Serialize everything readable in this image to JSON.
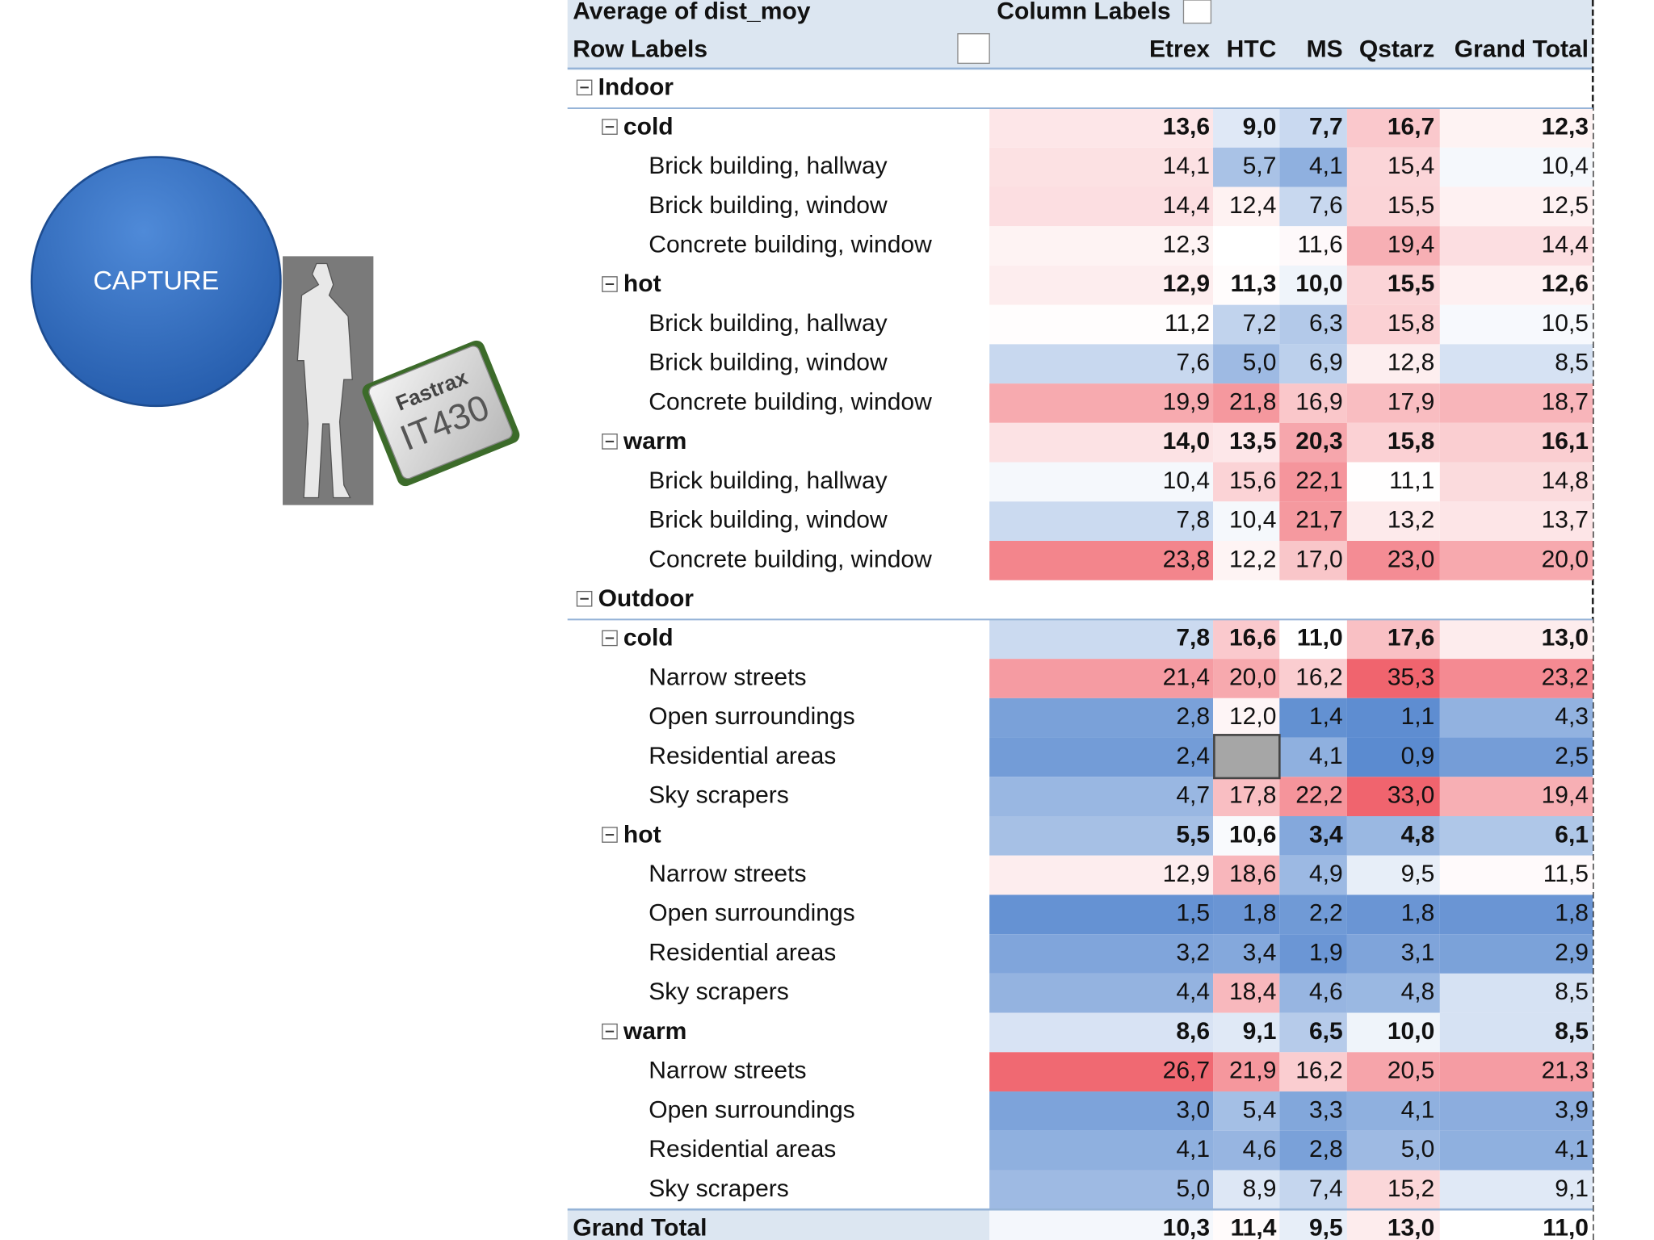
{
  "capture_label": "CAPTURE",
  "image_labels": [
    "Fastrax",
    "IT430"
  ],
  "table": {
    "header": {
      "value_field": "Average of dist_moy",
      "column_labels": "Column Labels",
      "row_labels": "Row Labels",
      "columns": [
        "Etrex",
        "HTC",
        "MS",
        "Qstarz",
        "Grand Total"
      ]
    },
    "groups": [
      {
        "label": "Indoor",
        "subgroups": [
          {
            "label": "cold",
            "values": [
              "13,6",
              "9,0",
              "7,7",
              "16,7",
              "12,3"
            ],
            "rows": [
              {
                "label": "Brick building, hallway",
                "values": [
                  "14,1",
                  "5,7",
                  "4,1",
                  "15,4",
                  "10,4"
                ]
              },
              {
                "label": "Brick building, window",
                "values": [
                  "14,4",
                  "12,4",
                  "7,6",
                  "15,5",
                  "12,5"
                ]
              },
              {
                "label": "Concrete building, window",
                "values": [
                  "12,3",
                  null,
                  "11,6",
                  "19,4",
                  "14,4"
                ]
              }
            ]
          },
          {
            "label": "hot",
            "values": [
              "12,9",
              "11,3",
              "10,0",
              "15,5",
              "12,6"
            ],
            "rows": [
              {
                "label": "Brick building, hallway",
                "values": [
                  "11,2",
                  "7,2",
                  "6,3",
                  "15,8",
                  "10,5"
                ]
              },
              {
                "label": "Brick building, window",
                "values": [
                  "7,6",
                  "5,0",
                  "6,9",
                  "12,8",
                  "8,5"
                ]
              },
              {
                "label": "Concrete building, window",
                "values": [
                  "19,9",
                  "21,8",
                  "16,9",
                  "17,9",
                  "18,7"
                ]
              }
            ]
          },
          {
            "label": "warm",
            "values": [
              "14,0",
              "13,5",
              "20,3",
              "15,8",
              "16,1"
            ],
            "rows": [
              {
                "label": "Brick building, hallway",
                "values": [
                  "10,4",
                  "15,6",
                  "22,1",
                  "11,1",
                  "14,8"
                ]
              },
              {
                "label": "Brick building, window",
                "values": [
                  "7,8",
                  "10,4",
                  "21,7",
                  "13,2",
                  "13,7"
                ]
              },
              {
                "label": "Concrete building, window",
                "values": [
                  "23,8",
                  "12,2",
                  "17,0",
                  "23,0",
                  "20,0"
                ]
              }
            ]
          }
        ]
      },
      {
        "label": "Outdoor",
        "subgroups": [
          {
            "label": "cold",
            "values": [
              "7,8",
              "16,6",
              "11,0",
              "17,6",
              "13,0"
            ],
            "rows": [
              {
                "label": "Narrow streets",
                "values": [
                  "21,4",
                  "20,0",
                  "16,2",
                  "35,3",
                  "23,2"
                ]
              },
              {
                "label": "Open surroundings",
                "values": [
                  "2,8",
                  "12,0",
                  "1,4",
                  "1,1",
                  "4,3"
                ]
              },
              {
                "label": "Residential areas",
                "values": [
                  "2,4",
                  null,
                  "4,1",
                  "0,9",
                  "2,5"
                ]
              },
              {
                "label": "Sky scrapers",
                "values": [
                  "4,7",
                  "17,8",
                  "22,2",
                  "33,0",
                  "19,4"
                ]
              }
            ]
          },
          {
            "label": "hot",
            "values": [
              "5,5",
              "10,6",
              "3,4",
              "4,8",
              "6,1"
            ],
            "rows": [
              {
                "label": "Narrow streets",
                "values": [
                  "12,9",
                  "18,6",
                  "4,9",
                  "9,5",
                  "11,5"
                ]
              },
              {
                "label": "Open surroundings",
                "values": [
                  "1,5",
                  "1,8",
                  "2,2",
                  "1,8",
                  "1,8"
                ]
              },
              {
                "label": "Residential areas",
                "values": [
                  "3,2",
                  "3,4",
                  "1,9",
                  "3,1",
                  "2,9"
                ]
              },
              {
                "label": "Sky scrapers",
                "values": [
                  "4,4",
                  "18,4",
                  "4,6",
                  "4,8",
                  "8,5"
                ]
              }
            ]
          },
          {
            "label": "warm",
            "values": [
              "8,6",
              "9,1",
              "6,5",
              "10,0",
              "8,5"
            ],
            "rows": [
              {
                "label": "Narrow streets",
                "values": [
                  "26,7",
                  "21,9",
                  "16,2",
                  "20,5",
                  "21,3"
                ]
              },
              {
                "label": "Open surroundings",
                "values": [
                  "3,0",
                  "5,4",
                  "3,3",
                  "4,1",
                  "3,9"
                ]
              },
              {
                "label": "Residential areas",
                "values": [
                  "4,1",
                  "4,6",
                  "2,8",
                  "5,0",
                  "4,1"
                ]
              },
              {
                "label": "Sky scrapers",
                "values": [
                  "5,0",
                  "8,9",
                  "7,4",
                  "15,2",
                  "9,1"
                ]
              }
            ]
          }
        ]
      }
    ],
    "grand_total": {
      "label": "Grand Total",
      "values": [
        "10,3",
        "11,4",
        "9,5",
        "13,0",
        "11,0"
      ]
    },
    "color_scale": {
      "low": "#5b8bd0",
      "mid": "#ffffff",
      "high": "#f0646e"
    }
  }
}
